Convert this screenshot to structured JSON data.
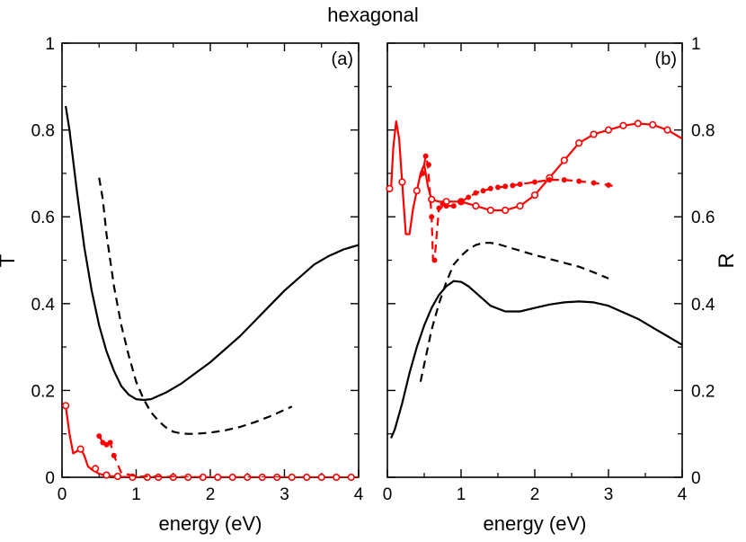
{
  "title": "hexagonal",
  "chart_data": [
    {
      "type": "line",
      "panel_label": "(a)",
      "xlabel": "energy (eV)",
      "ylabel": "T",
      "xlim": [
        0,
        4
      ],
      "ylim": [
        0,
        1
      ],
      "xticks": [
        "0",
        "1",
        "2",
        "3",
        "4"
      ],
      "yticks": [
        "0",
        "0.2",
        "0.4",
        "0.6",
        "0.8",
        "1"
      ],
      "series": [
        {
          "name": "black solid",
          "color": "#000000",
          "dash": "solid",
          "marker": "none",
          "x": [
            0.05,
            0.1,
            0.2,
            0.3,
            0.4,
            0.5,
            0.6,
            0.7,
            0.8,
            0.9,
            1.0,
            1.1,
            1.2,
            1.4,
            1.6,
            1.8,
            2.0,
            2.2,
            2.4,
            2.6,
            2.8,
            3.0,
            3.2,
            3.4,
            3.6,
            3.8,
            4.0
          ],
          "y": [
            0.855,
            0.8,
            0.66,
            0.53,
            0.43,
            0.35,
            0.29,
            0.245,
            0.21,
            0.19,
            0.18,
            0.178,
            0.18,
            0.195,
            0.215,
            0.24,
            0.265,
            0.295,
            0.325,
            0.36,
            0.395,
            0.43,
            0.46,
            0.49,
            0.51,
            0.525,
            0.535
          ]
        },
        {
          "name": "black dashed",
          "color": "#000000",
          "dash": "dashed",
          "marker": "none",
          "x": [
            0.5,
            0.55,
            0.6,
            0.7,
            0.8,
            0.9,
            1.0,
            1.1,
            1.2,
            1.3,
            1.4,
            1.5,
            1.6,
            1.7,
            1.8,
            2.0,
            2.2,
            2.4,
            2.6,
            2.8,
            3.1
          ],
          "y": [
            0.69,
            0.64,
            0.56,
            0.44,
            0.35,
            0.28,
            0.22,
            0.18,
            0.15,
            0.13,
            0.115,
            0.105,
            0.101,
            0.1,
            0.1,
            0.103,
            0.108,
            0.116,
            0.127,
            0.14,
            0.163
          ]
        },
        {
          "name": "red solid circles",
          "color": "#ff0000",
          "dash": "solid",
          "marker": "open-circle",
          "x": [
            0.05,
            0.1,
            0.15,
            0.2,
            0.25,
            0.3,
            0.35,
            0.4,
            0.5,
            0.6,
            0.7,
            0.8,
            1.0,
            1.5,
            2.0,
            2.5,
            3.0,
            3.5,
            4.0
          ],
          "y": [
            0.165,
            0.1,
            0.055,
            0.06,
            0.067,
            0.05,
            0.025,
            0.018,
            0.008,
            0.003,
            0.002,
            0.001,
            0.0,
            0.0,
            0.0,
            0.0,
            0.0,
            0.0,
            0.0
          ],
          "marker_x": [
            0.05,
            0.25,
            0.45,
            0.6,
            0.75,
            0.95,
            1.15,
            1.3,
            1.5,
            1.7,
            1.9,
            2.1,
            2.3,
            2.5,
            2.7,
            2.9,
            3.1,
            3.3,
            3.5,
            3.7,
            3.9
          ],
          "marker_y": [
            0.165,
            0.065,
            0.02,
            0.005,
            0.002,
            0,
            0,
            0,
            0,
            0,
            0,
            0,
            0,
            0,
            0,
            0,
            0,
            0,
            0,
            0,
            0
          ]
        },
        {
          "name": "red dashed dots",
          "color": "#ff0000",
          "dash": "dashed",
          "marker": "dot",
          "x": [
            0.5,
            0.55,
            0.6,
            0.65,
            0.7,
            0.8,
            1.0,
            1.5,
            2.0,
            2.5,
            3.0
          ],
          "y": [
            0.095,
            0.08,
            0.075,
            0.08,
            0.05,
            0.01,
            0.002,
            0.001,
            0.0,
            0.0,
            0.0
          ],
          "marker_x": [
            0.5,
            0.55,
            0.6,
            0.65,
            0.7
          ],
          "marker_y": [
            0.095,
            0.08,
            0.075,
            0.08,
            0.05
          ]
        }
      ]
    },
    {
      "type": "line",
      "panel_label": "(b)",
      "xlabel": "energy (eV)",
      "ylabel": "R",
      "xlim": [
        0,
        4
      ],
      "ylim": [
        0,
        1
      ],
      "xticks": [
        "0",
        "1",
        "2",
        "3",
        "4"
      ],
      "yticks": [
        "0",
        "0.2",
        "0.4",
        "0.6",
        "0.8",
        "1"
      ],
      "series": [
        {
          "name": "black solid",
          "color": "#000000",
          "dash": "solid",
          "marker": "none",
          "x": [
            0.05,
            0.1,
            0.2,
            0.3,
            0.4,
            0.5,
            0.6,
            0.7,
            0.8,
            0.9,
            1.0,
            1.1,
            1.2,
            1.4,
            1.6,
            1.8,
            2.0,
            2.2,
            2.4,
            2.6,
            2.8,
            3.0,
            3.2,
            3.4,
            3.6,
            3.8,
            4.0
          ],
          "y": [
            0.09,
            0.11,
            0.17,
            0.24,
            0.3,
            0.35,
            0.39,
            0.42,
            0.44,
            0.452,
            0.45,
            0.44,
            0.425,
            0.395,
            0.382,
            0.382,
            0.39,
            0.398,
            0.403,
            0.405,
            0.403,
            0.395,
            0.38,
            0.365,
            0.345,
            0.325,
            0.305
          ]
        },
        {
          "name": "black dashed",
          "color": "#000000",
          "dash": "dashed",
          "marker": "none",
          "x": [
            0.45,
            0.5,
            0.6,
            0.7,
            0.8,
            0.9,
            1.0,
            1.1,
            1.2,
            1.3,
            1.4,
            1.5,
            1.6,
            1.8,
            2.0,
            2.2,
            2.4,
            2.6,
            2.8,
            3.0
          ],
          "y": [
            0.22,
            0.26,
            0.34,
            0.4,
            0.45,
            0.49,
            0.51,
            0.525,
            0.535,
            0.54,
            0.54,
            0.537,
            0.532,
            0.522,
            0.512,
            0.503,
            0.494,
            0.485,
            0.472,
            0.458
          ]
        },
        {
          "name": "red solid circles",
          "color": "#ff0000",
          "dash": "solid",
          "marker": "open-circle",
          "x": [
            0.05,
            0.08,
            0.12,
            0.16,
            0.2,
            0.25,
            0.3,
            0.35,
            0.4,
            0.45,
            0.5,
            0.55,
            0.6,
            0.7,
            0.8,
            1.0,
            1.2,
            1.4,
            1.6,
            1.8,
            2.0,
            2.2,
            2.4,
            2.6,
            2.8,
            3.0,
            3.2,
            3.4,
            3.6,
            3.8,
            4.0
          ],
          "y": [
            0.665,
            0.76,
            0.82,
            0.78,
            0.68,
            0.56,
            0.56,
            0.62,
            0.66,
            0.7,
            0.72,
            0.67,
            0.64,
            0.635,
            0.635,
            0.635,
            0.625,
            0.615,
            0.615,
            0.625,
            0.65,
            0.69,
            0.73,
            0.77,
            0.79,
            0.8,
            0.81,
            0.815,
            0.812,
            0.8,
            0.78
          ],
          "marker_x": [
            0.03,
            0.2,
            0.4,
            0.6,
            0.8,
            1.0,
            1.2,
            1.4,
            1.6,
            1.8,
            2.0,
            2.2,
            2.4,
            2.6,
            2.8,
            3.0,
            3.2,
            3.4,
            3.6,
            3.8
          ],
          "marker_y": [
            0.665,
            0.68,
            0.66,
            0.64,
            0.635,
            0.635,
            0.625,
            0.615,
            0.615,
            0.625,
            0.65,
            0.69,
            0.73,
            0.77,
            0.79,
            0.8,
            0.81,
            0.815,
            0.812,
            0.8
          ]
        },
        {
          "name": "red dashed dots",
          "color": "#ff0000",
          "dash": "dashed",
          "marker": "dot",
          "x": [
            0.45,
            0.5,
            0.52,
            0.55,
            0.6,
            0.62,
            0.65,
            0.7,
            0.8,
            0.9,
            1.0,
            1.2,
            1.4,
            1.6,
            1.8,
            2.0,
            2.2,
            2.4,
            2.6,
            2.8,
            3.0,
            3.1
          ],
          "y": [
            0.69,
            0.72,
            0.74,
            0.72,
            0.6,
            0.5,
            0.52,
            0.62,
            0.625,
            0.625,
            0.635,
            0.655,
            0.665,
            0.67,
            0.675,
            0.68,
            0.685,
            0.685,
            0.682,
            0.678,
            0.673,
            0.67
          ],
          "marker_x": [
            0.48,
            0.52,
            0.56,
            0.6,
            0.64,
            0.7,
            0.75,
            0.8,
            0.9,
            1.0,
            1.1,
            1.2,
            1.3,
            1.4,
            1.5,
            1.6,
            1.7,
            1.8,
            2.0,
            2.2,
            2.4,
            2.6,
            2.8,
            3.0
          ],
          "marker_y": [
            0.7,
            0.74,
            0.72,
            0.6,
            0.5,
            0.62,
            0.63,
            0.625,
            0.625,
            0.635,
            0.645,
            0.655,
            0.66,
            0.665,
            0.668,
            0.67,
            0.672,
            0.675,
            0.68,
            0.685,
            0.685,
            0.682,
            0.678,
            0.673
          ]
        }
      ]
    }
  ]
}
